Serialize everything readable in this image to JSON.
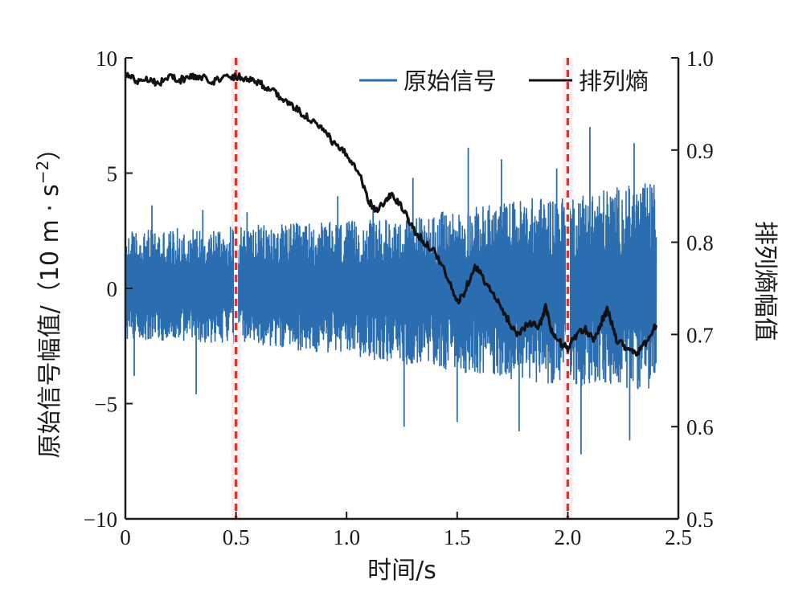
{
  "chart_data": {
    "type": "line",
    "title": "",
    "x_axis": {
      "label": "时间/s",
      "range": [
        0,
        2.5
      ],
      "ticks": [
        "0",
        "0.5",
        "1.0",
        "1.5",
        "2.0",
        "2.5"
      ]
    },
    "y_axis_left": {
      "label_main": "原始信号幅值/（10 m · s",
      "label_sup": "−2",
      "label_close": "）",
      "range": [
        -10,
        10
      ],
      "ticks": [
        "−10",
        "−5",
        "0",
        "5",
        "10"
      ]
    },
    "y_axis_right": {
      "label": "排列熵幅值",
      "range": [
        0.5,
        1.0
      ],
      "ticks": [
        "0.5",
        "0.6",
        "0.7",
        "0.8",
        "0.9",
        "1.0"
      ]
    },
    "legend": {
      "placement": "top-right",
      "entries": [
        "原始信号",
        "排列熵"
      ]
    },
    "series": [
      {
        "name": "原始信号",
        "axis": "left",
        "color": "#2a6db0",
        "x_range": [
          0,
          2.4
        ],
        "envelope_x": [
          0,
          0.5,
          0.7,
          1.0,
          1.2,
          1.5,
          1.8,
          2.0,
          2.2,
          2.4
        ],
        "envelope_upper": [
          2.5,
          2.7,
          2.8,
          2.9,
          3.0,
          3.4,
          3.9,
          4.1,
          4.4,
          4.6
        ],
        "envelope_lower": [
          -2.2,
          -2.4,
          -2.6,
          -2.9,
          -3.2,
          -3.6,
          -4.0,
          -4.2,
          -4.3,
          -4.4
        ],
        "spikes_upper": [
          [
            0.12,
            3.6
          ],
          [
            0.35,
            3.4
          ],
          [
            0.55,
            3.3
          ],
          [
            0.96,
            4.0
          ],
          [
            1.12,
            3.6
          ],
          [
            1.3,
            4.8
          ],
          [
            1.55,
            6.1
          ],
          [
            1.7,
            5.6
          ],
          [
            1.95,
            5.2
          ],
          [
            2.1,
            7.0
          ],
          [
            2.3,
            6.3
          ]
        ],
        "spikes_lower": [
          [
            0.04,
            -3.8
          ],
          [
            0.32,
            -4.6
          ],
          [
            0.5,
            -3.9
          ],
          [
            1.26,
            -6.0
          ],
          [
            1.5,
            -5.8
          ],
          [
            1.78,
            -6.2
          ],
          [
            2.06,
            -7.2
          ],
          [
            2.28,
            -6.6
          ]
        ]
      },
      {
        "name": "排列熵",
        "axis": "right",
        "color": "#111111",
        "x": [
          0,
          0.05,
          0.1,
          0.15,
          0.2,
          0.25,
          0.3,
          0.35,
          0.4,
          0.45,
          0.5,
          0.55,
          0.6,
          0.65,
          0.7,
          0.75,
          0.8,
          0.85,
          0.9,
          0.95,
          1.0,
          1.05,
          1.1,
          1.13,
          1.18,
          1.2,
          1.25,
          1.3,
          1.35,
          1.4,
          1.45,
          1.5,
          1.53,
          1.58,
          1.62,
          1.67,
          1.72,
          1.77,
          1.82,
          1.87,
          1.9,
          1.93,
          1.97,
          2.0,
          2.04,
          2.08,
          2.12,
          2.16,
          2.18,
          2.22,
          2.27,
          2.32,
          2.36,
          2.4
        ],
        "y": [
          0.983,
          0.975,
          0.978,
          0.972,
          0.98,
          0.976,
          0.98,
          0.978,
          0.975,
          0.979,
          0.98,
          0.978,
          0.974,
          0.966,
          0.958,
          0.948,
          0.94,
          0.93,
          0.92,
          0.905,
          0.895,
          0.88,
          0.845,
          0.835,
          0.845,
          0.852,
          0.838,
          0.815,
          0.8,
          0.79,
          0.765,
          0.735,
          0.745,
          0.775,
          0.76,
          0.74,
          0.72,
          0.7,
          0.712,
          0.708,
          0.73,
          0.7,
          0.69,
          0.685,
          0.7,
          0.705,
          0.695,
          0.718,
          0.727,
          0.695,
          0.685,
          0.68,
          0.694,
          0.71
        ]
      }
    ],
    "markers": [
      {
        "x": 0.5,
        "style": "dashed",
        "color": "#e0342b"
      },
      {
        "x": 2.0,
        "style": "dashed",
        "color": "#e0342b"
      }
    ]
  }
}
